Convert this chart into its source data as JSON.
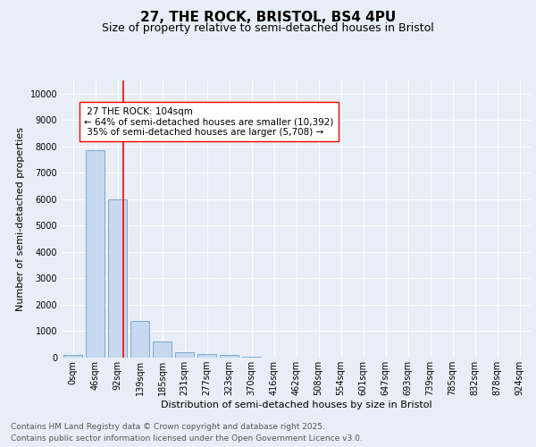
{
  "title1": "27, THE ROCK, BRISTOL, BS4 4PU",
  "title2": "Size of property relative to semi-detached houses in Bristol",
  "xlabel": "Distribution of semi-detached houses by size in Bristol",
  "ylabel": "Number of semi-detached properties",
  "bar_labels": [
    "0sqm",
    "46sqm",
    "92sqm",
    "139sqm",
    "185sqm",
    "231sqm",
    "277sqm",
    "323sqm",
    "370sqm",
    "416sqm",
    "462sqm",
    "508sqm",
    "554sqm",
    "601sqm",
    "647sqm",
    "693sqm",
    "739sqm",
    "785sqm",
    "832sqm",
    "878sqm",
    "924sqm"
  ],
  "bar_values": [
    100,
    7850,
    6000,
    1380,
    600,
    200,
    150,
    90,
    20,
    5,
    2,
    1,
    0,
    0,
    0,
    0,
    0,
    0,
    0,
    0,
    0
  ],
  "bar_color": "#c6d9f0",
  "bar_edge_color": "#5b8ec4",
  "property_label": "27 THE ROCK: 104sqm",
  "pct_smaller": 64,
  "n_smaller": 10392,
  "pct_larger": 35,
  "n_larger": 5708,
  "vline_x": 2.26,
  "ylim": [
    0,
    10500
  ],
  "yticks": [
    0,
    1000,
    2000,
    3000,
    4000,
    5000,
    6000,
    7000,
    8000,
    9000,
    10000
  ],
  "footer_line1": "Contains HM Land Registry data © Crown copyright and database right 2025.",
  "footer_line2": "Contains public sector information licensed under the Open Government Licence v3.0.",
  "bg_color": "#e8eef7",
  "plot_bg_color": "#e8eef7",
  "grid_color": "white",
  "vline_color": "red",
  "box_edge_color": "red",
  "title1_fontsize": 11,
  "title2_fontsize": 9,
  "axis_label_fontsize": 8,
  "tick_fontsize": 7,
  "annotation_fontsize": 7.5,
  "footer_fontsize": 6.5
}
